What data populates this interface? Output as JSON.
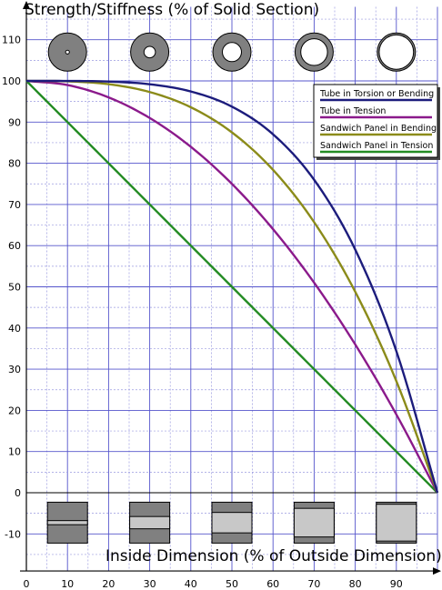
{
  "chart_data": {
    "type": "line",
    "title": "",
    "ylabel": "Strength/Stiffness (% of Solid Section)",
    "xlabel": "Inside Dimension (% of Outside Dimension)",
    "xlim": [
      0,
      100
    ],
    "ylim": [
      -12,
      118
    ],
    "x_ticks": [
      "0",
      "10",
      "20",
      "30",
      "40",
      "50",
      "60",
      "70",
      "80",
      "90"
    ],
    "y_ticks": [
      "-10",
      "0",
      "10",
      "20",
      "30",
      "40",
      "50",
      "60",
      "70",
      "80",
      "90",
      "100",
      "110"
    ],
    "x_tick_values": [
      0,
      10,
      20,
      30,
      40,
      50,
      60,
      70,
      80,
      90
    ],
    "y_tick_values": [
      -10,
      0,
      10,
      20,
      30,
      40,
      50,
      60,
      70,
      80,
      90,
      100,
      110
    ],
    "grid": true,
    "legend_position": "top-right",
    "x": [
      0,
      10,
      20,
      30,
      40,
      50,
      60,
      70,
      80,
      90,
      100
    ],
    "series": [
      {
        "name": "Tube in Torsion or Bending",
        "color": "#1c1c7c",
        "values": [
          100,
          99.99,
          99.84,
          99.19,
          97.44,
          93.75,
          87.04,
          75.99,
          59.04,
          34.39,
          0
        ]
      },
      {
        "name": "Tube in Tension",
        "color": "#8b1a8b",
        "values": [
          100,
          99,
          96,
          91,
          84,
          75,
          64,
          51,
          36,
          19,
          0
        ]
      },
      {
        "name": "Sandwich Panel in Bending",
        "color": "#8b8b1a",
        "values": [
          100,
          99.9,
          99.2,
          97.3,
          93.6,
          87.5,
          78.4,
          65.7,
          48.8,
          27.1,
          0
        ]
      },
      {
        "name": "Sandwich Panel in Tension",
        "color": "#238b23",
        "values": [
          100,
          90,
          80,
          70,
          60,
          50,
          40,
          30,
          20,
          10,
          0
        ]
      }
    ],
    "tube_icons": {
      "x": [
        10,
        30,
        50,
        70,
        90
      ],
      "inside_pct": [
        10,
        30,
        50,
        70,
        90
      ],
      "fill": "#808080"
    },
    "panel_icons": {
      "x": [
        10,
        30,
        50,
        70,
        90
      ],
      "inside_pct": [
        10,
        30,
        50,
        70,
        90
      ],
      "face_color": "#808080",
      "core_color": "#c8c8c8"
    }
  }
}
